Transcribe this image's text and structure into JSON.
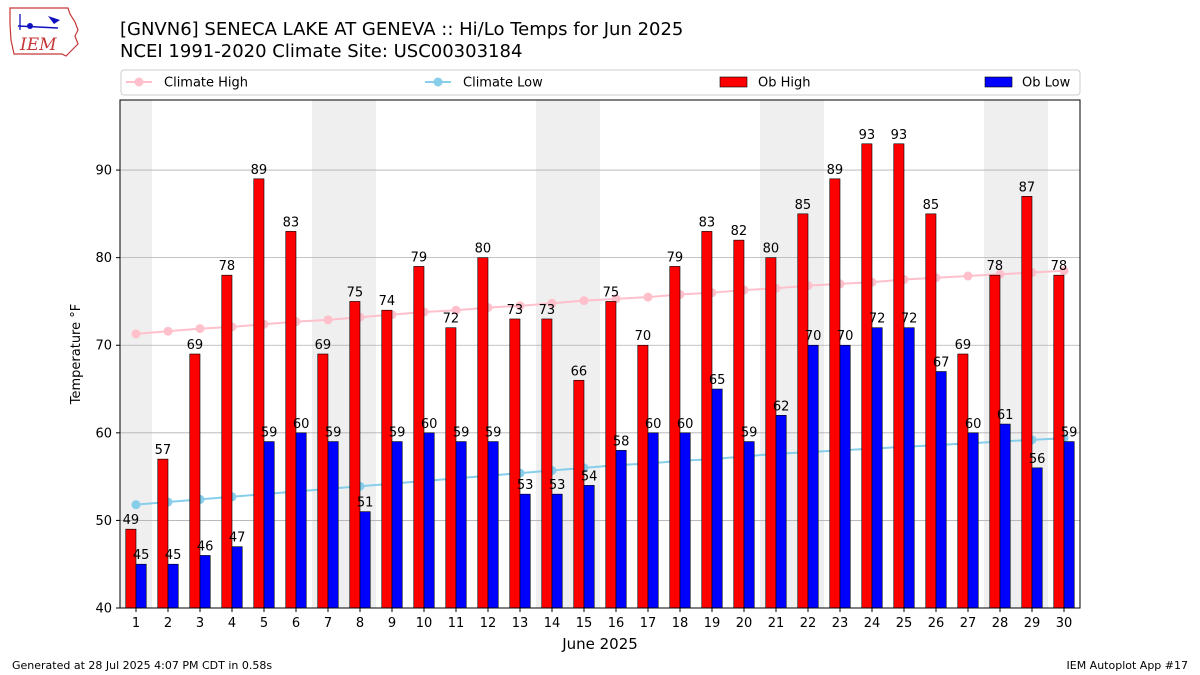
{
  "logo_text": "IEM",
  "title_line1": "[GNVN6] SENECA LAKE AT GENEVA :: Hi/Lo Temps for Jun 2025",
  "title_line2": "NCEI 1991-2020 Climate Site: USC00303184",
  "footer_left": "Generated at 28 Jul 2025 4:07 PM CDT in 0.58s",
  "footer_right": "IEM Autoplot App #17",
  "chart_data": {
    "type": "bar",
    "xlabel": "June 2025",
    "ylabel": "Temperature °F",
    "ylim": [
      40,
      98
    ],
    "yticks": [
      40,
      50,
      60,
      70,
      80,
      90
    ],
    "grid": true,
    "legend_position": "top",
    "categories": [
      "1",
      "2",
      "3",
      "4",
      "5",
      "6",
      "7",
      "8",
      "9",
      "10",
      "11",
      "12",
      "13",
      "14",
      "15",
      "16",
      "17",
      "18",
      "19",
      "20",
      "21",
      "22",
      "23",
      "24",
      "25",
      "26",
      "27",
      "28",
      "29",
      "30"
    ],
    "weekend_days": [
      1,
      7,
      8,
      14,
      15,
      21,
      22,
      28,
      29
    ],
    "series": [
      {
        "name": "Climate High",
        "kind": "line",
        "color": "#ffc0cb",
        "values": [
          71.3,
          71.6,
          71.9,
          72.1,
          72.4,
          72.7,
          72.9,
          73.2,
          73.5,
          73.8,
          74.0,
          74.3,
          74.5,
          74.8,
          75.1,
          75.3,
          75.5,
          75.8,
          76.0,
          76.3,
          76.5,
          76.8,
          77.0,
          77.2,
          77.5,
          77.7,
          77.9,
          78.1,
          78.3,
          78.5
        ]
      },
      {
        "name": "Climate Low",
        "kind": "line",
        "color": "#87ceeb",
        "values": [
          51.8,
          52.1,
          52.4,
          52.7,
          53.0,
          53.3,
          53.6,
          53.9,
          54.2,
          54.5,
          54.8,
          55.1,
          55.4,
          55.7,
          56.0,
          56.3,
          56.5,
          56.8,
          57.0,
          57.3,
          57.6,
          57.8,
          58.0,
          58.2,
          58.4,
          58.6,
          58.8,
          59.0,
          59.2,
          59.4
        ]
      },
      {
        "name": "Ob High",
        "kind": "bar",
        "color": "#ff0000",
        "values": [
          49,
          57,
          69,
          78,
          89,
          83,
          69,
          75,
          74,
          79,
          72,
          80,
          73,
          73,
          66,
          75,
          70,
          79,
          83,
          82,
          80,
          85,
          89,
          93,
          93,
          85,
          69,
          78,
          87,
          78
        ]
      },
      {
        "name": "Ob Low",
        "kind": "bar",
        "color": "#0000ff",
        "values": [
          45,
          45,
          46,
          47,
          59,
          60,
          59,
          51,
          59,
          60,
          59,
          59,
          53,
          53,
          54,
          58,
          60,
          60,
          65,
          59,
          62,
          70,
          70,
          72,
          72,
          67,
          60,
          61,
          56,
          59
        ]
      }
    ]
  }
}
